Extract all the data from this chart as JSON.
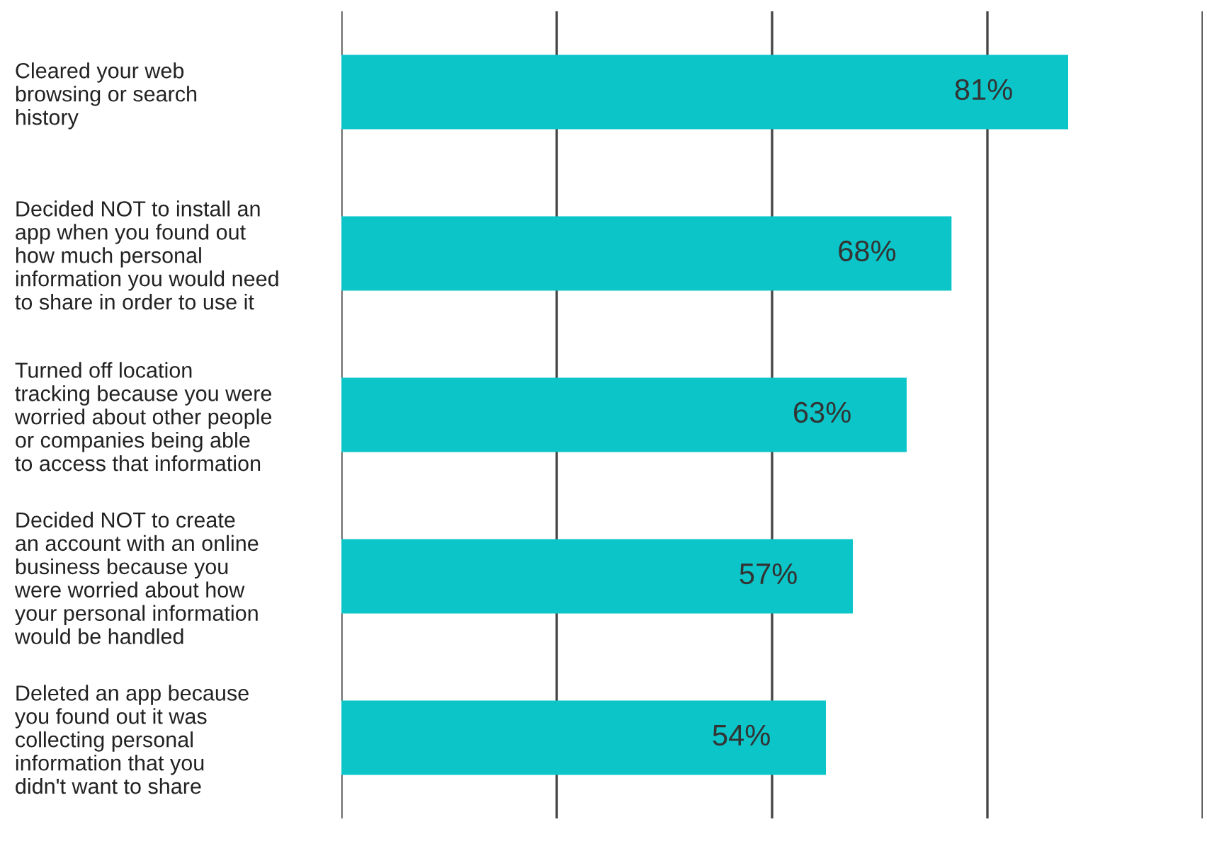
{
  "chart_data": {
    "type": "bar",
    "orientation": "horizontal",
    "categories": [
      "Cleared your web\nbrowsing or search\nhistory",
      "Decided NOT to install an\napp when you found out\nhow much personal\ninformation you would need\nto share in order to use it",
      "Turned off location\ntracking because you were\nworried about other people\nor companies being able\nto access that information",
      "Decided NOT to create\nan account with an online\nbusiness because you\nwere worried about how\nyour personal information\nwould be handled",
      "Deleted an app because\nyou found out it was\ncollecting personal\ninformation that you\ndidn't want to share"
    ],
    "values": [
      81,
      68,
      63,
      57,
      54
    ],
    "value_labels": [
      "81%",
      "68%",
      "63%",
      "57%",
      "54%"
    ],
    "color": "#0bc5c9",
    "xlim": [
      0,
      96
    ],
    "xticks": [
      {
        "value": 0,
        "label": null
      },
      {
        "value": 24,
        "label": null
      },
      {
        "value": 48,
        "label": null
      },
      {
        "value": 72,
        "label": null
      },
      {
        "value": 96,
        "label": null
      }
    ],
    "grid": "x",
    "tick_labels": "y"
  }
}
